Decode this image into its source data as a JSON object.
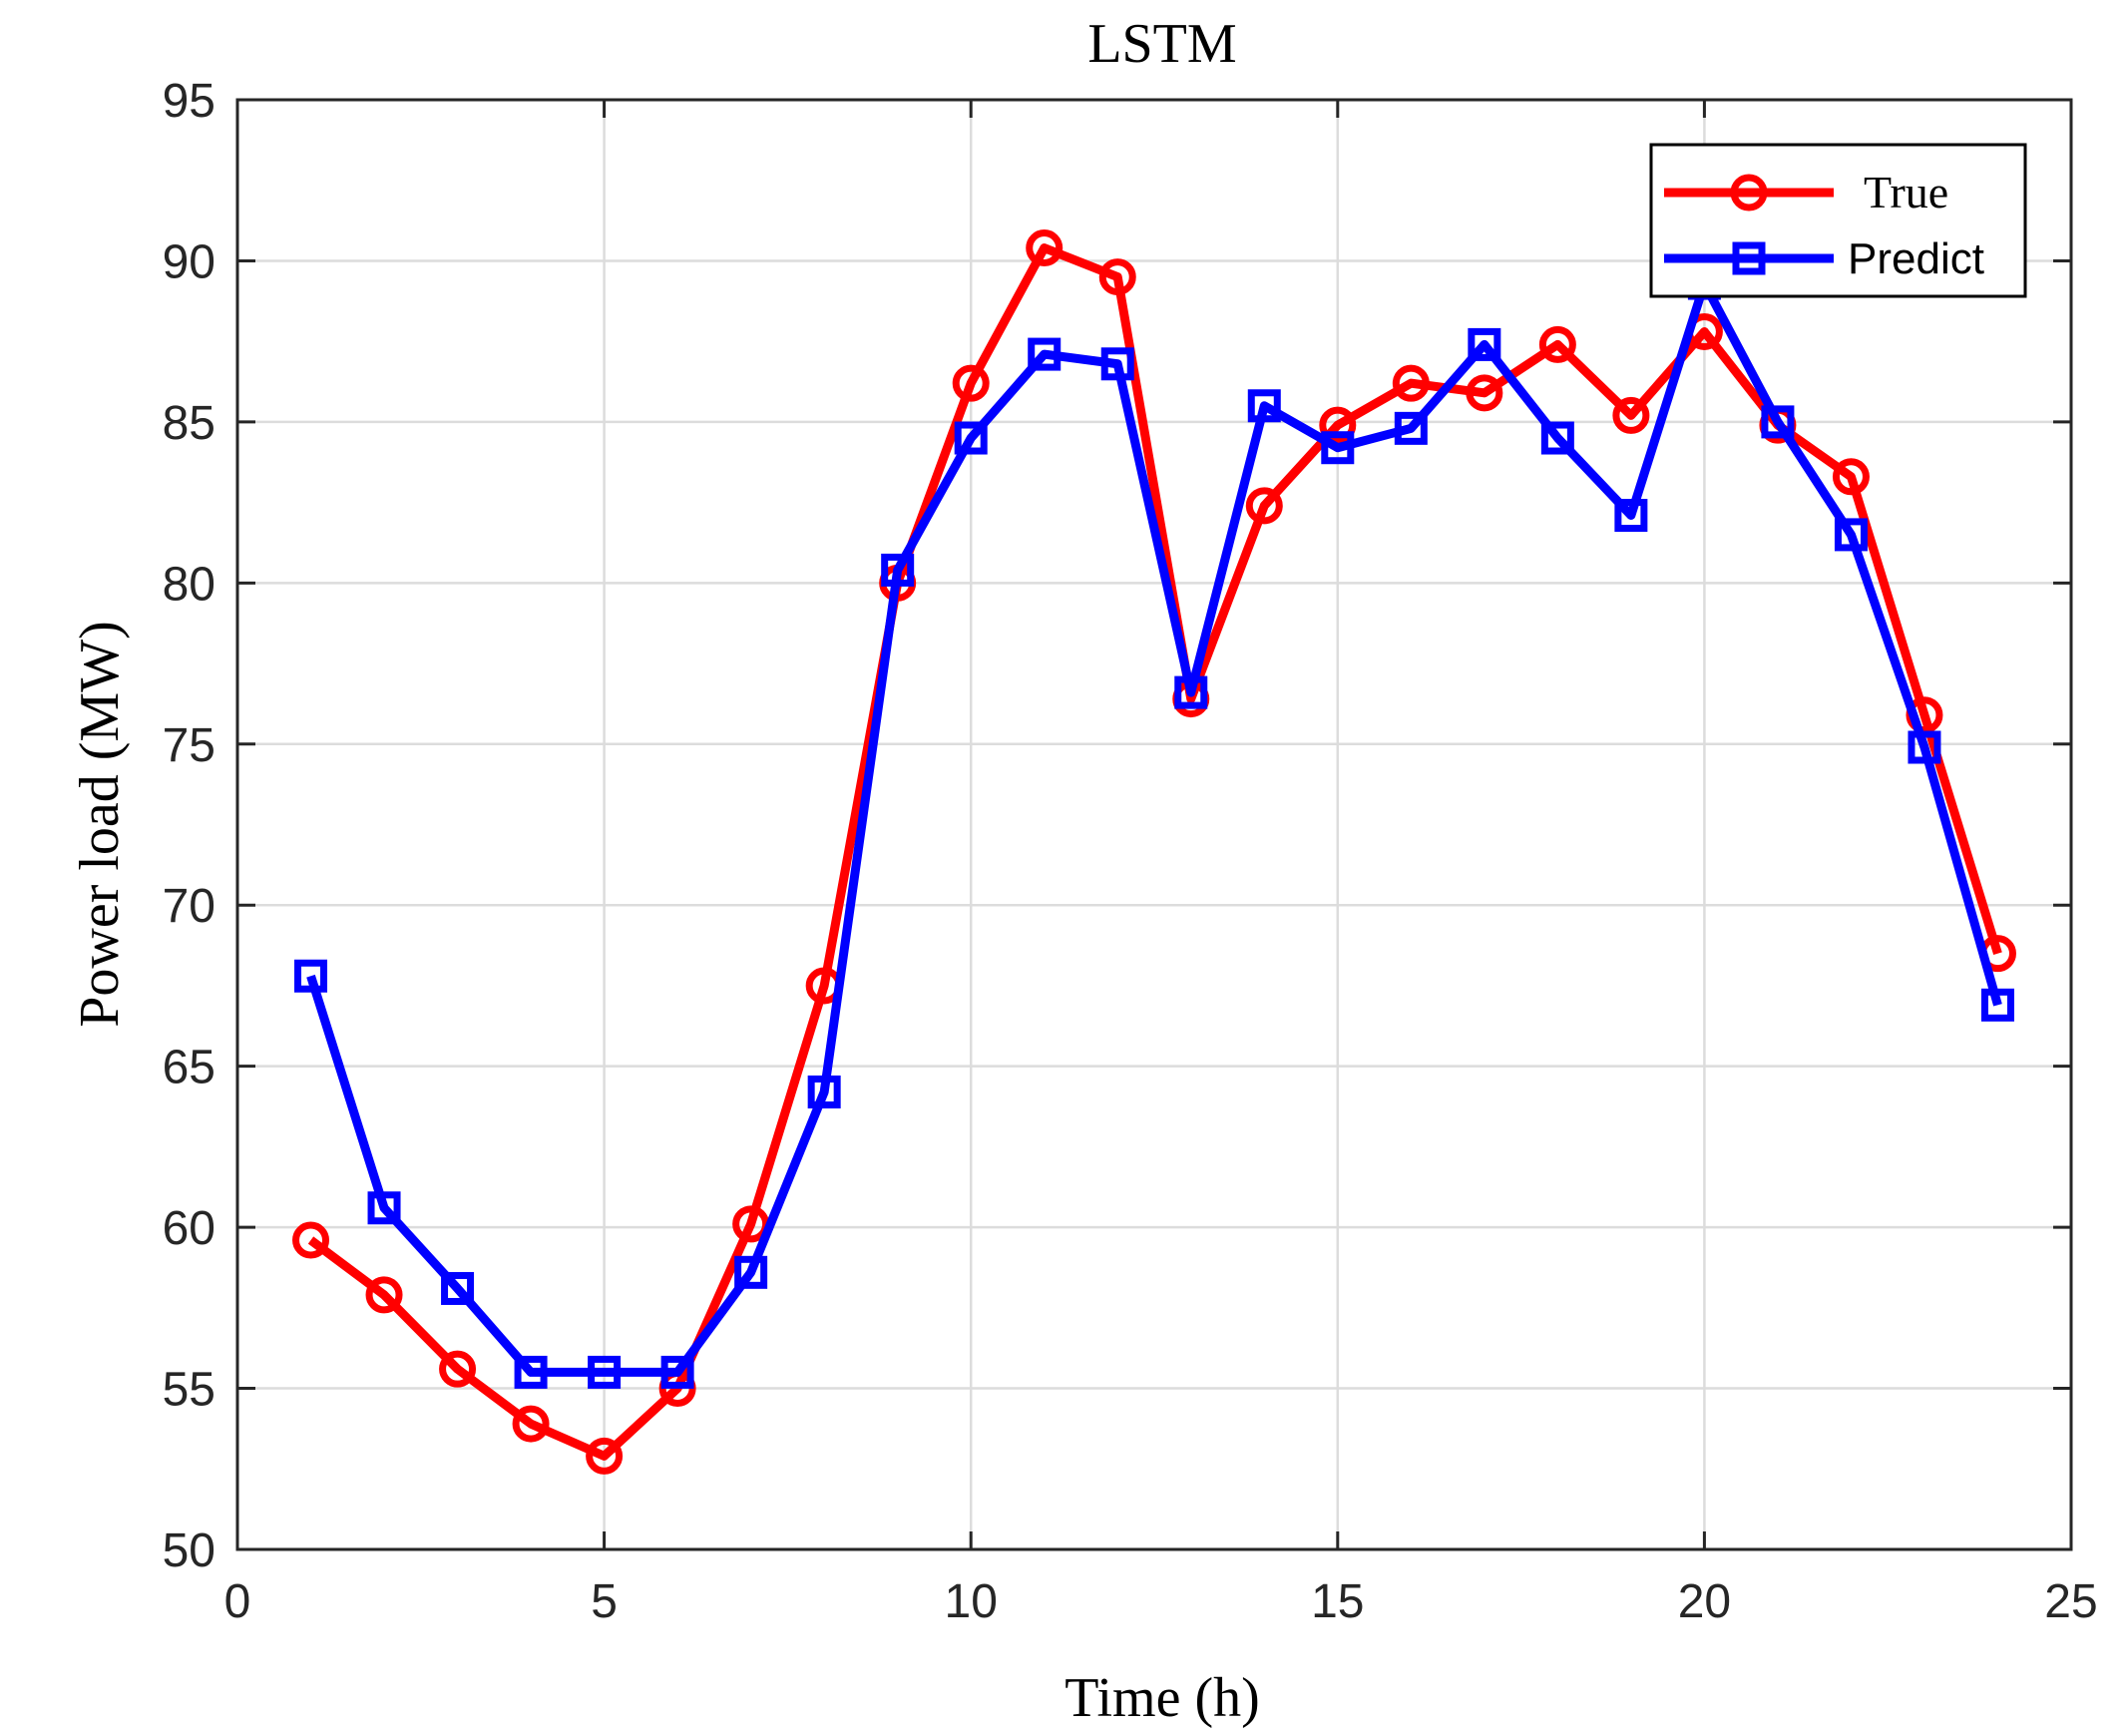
{
  "chart_data": {
    "type": "line",
    "title": "LSTM",
    "xlabel": "Time (h)",
    "ylabel": "Power load (MW)",
    "xlim": [
      0,
      25
    ],
    "ylim": [
      50,
      95
    ],
    "xticks": [
      0,
      5,
      10,
      15,
      20,
      25
    ],
    "yticks": [
      50,
      55,
      60,
      65,
      70,
      75,
      80,
      85,
      90,
      95
    ],
    "grid": true,
    "legend_position": "top-right",
    "x": [
      1,
      2,
      3,
      4,
      5,
      6,
      7,
      8,
      9,
      10,
      11,
      12,
      13,
      14,
      15,
      16,
      17,
      18,
      19,
      20,
      21,
      22,
      23,
      24
    ],
    "series": [
      {
        "name": "True",
        "color": "#ff0000",
        "marker": "circle",
        "values": [
          59.6,
          57.9,
          55.6,
          53.9,
          52.9,
          55.0,
          60.1,
          67.5,
          80.0,
          86.2,
          90.4,
          89.5,
          76.4,
          82.4,
          84.9,
          86.2,
          85.9,
          87.4,
          85.2,
          87.8,
          84.9,
          83.3,
          75.9,
          68.5
        ]
      },
      {
        "name": "Predict",
        "color": "#0000ff",
        "marker": "square",
        "values": [
          67.8,
          60.6,
          58.1,
          55.5,
          55.5,
          55.5,
          58.6,
          64.2,
          80.4,
          84.5,
          87.1,
          86.8,
          76.6,
          85.5,
          84.2,
          84.8,
          87.4,
          84.5,
          82.1,
          89.3,
          85.0,
          81.5,
          74.9,
          66.9
        ]
      }
    ]
  }
}
